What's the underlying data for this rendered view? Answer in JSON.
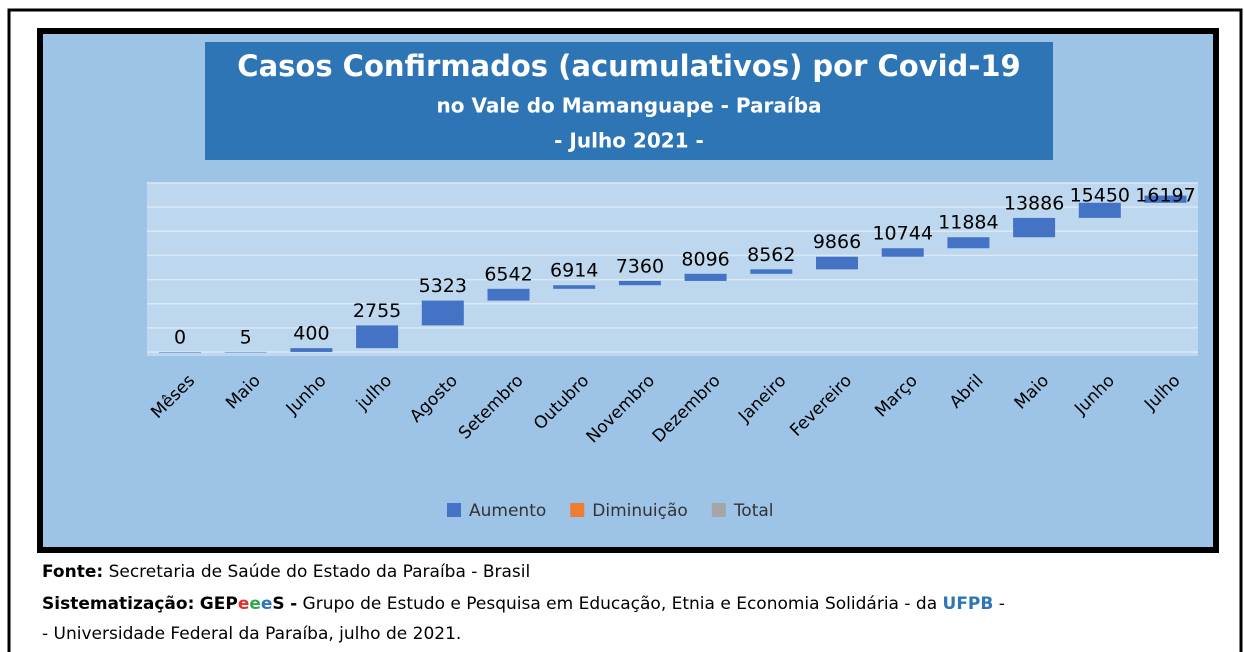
{
  "chart_data": {
    "type": "waterfall",
    "title": "Casos Confirmados (acumulativos) por Covid-19",
    "subtitle": "no Vale do Mamanguape - Paraíba",
    "subtitle2": "- Julho 2021 -",
    "categories": [
      "Mêses",
      "Maio",
      "Junho",
      "julho",
      "Agosto",
      "Setembro",
      "Outubro",
      "Novembro",
      "Dezembro",
      "Janeiro",
      "Fevereiro",
      "Março",
      "Abril",
      "Maio",
      "Junho",
      "Julho"
    ],
    "values": [
      0,
      5,
      400,
      2755,
      5323,
      6542,
      6914,
      7360,
      8096,
      8562,
      9866,
      10744,
      11884,
      13886,
      15450,
      16197
    ],
    "color": "#4472c4",
    "ylim": [
      0,
      17500
    ],
    "yticks": [
      0,
      2500,
      5000,
      7500,
      10000,
      12500,
      15000,
      17500
    ],
    "grid": true,
    "legend": [
      {
        "name": "Aumento",
        "color": "#4472c4"
      },
      {
        "name": "Diminuição",
        "color": "#ed7d31"
      },
      {
        "name": "Total",
        "color": "#a5a5a5"
      }
    ],
    "legend_position": "bottom"
  },
  "footer": {
    "source_label": "Fonte:",
    "source_text": "Secretaria de Saúde do Estado da Paraíba - Brasil",
    "credit_label": "Sistematização:",
    "credit_org": [
      {
        "text": "GEP",
        "color": "#000000"
      },
      {
        "text": "e",
        "color": "#e03030"
      },
      {
        "text": "e",
        "color": "#2fa84f"
      },
      {
        "text": "e",
        "color": "#2e75b6"
      },
      {
        "text": "S",
        "color": "#000000"
      }
    ],
    "credit_dash": "-",
    "credit_text": "Grupo de Estudo e Pesquisa em Educação, Etnia e Economia Solidária - da",
    "credit_univ": "UFPB",
    "credit_end": "-",
    "credit_line2": "- Universidade Federal da Paraíba, julho de 2021."
  }
}
